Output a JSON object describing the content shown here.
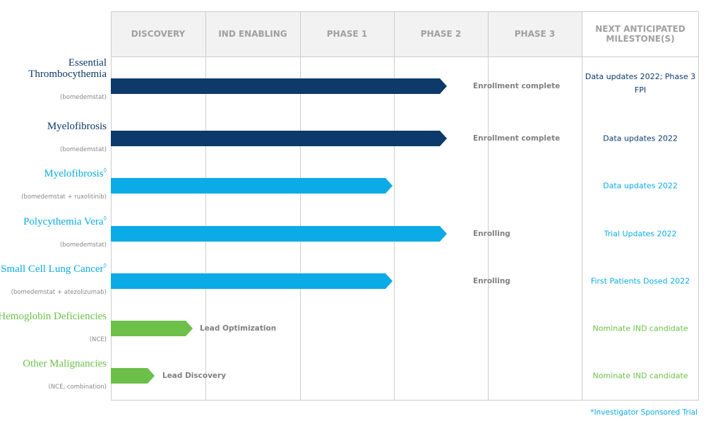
{
  "header": {
    "columns": [
      "DISCOVERY",
      "IND ENABLING",
      "PHASE 1",
      "PHASE 2",
      "PHASE 3",
      "NEXT ANTICIPATED MILESTONE(S)"
    ]
  },
  "rows": [
    {
      "name": "Essential Thrombocythemia",
      "drug": "(bomedemstat)",
      "color": "#0d3a6b",
      "status": "Enrollment complete",
      "milestone": "Data updates 2022; Phase 3 FPI"
    },
    {
      "name": "Myelofibrosis",
      "drug": "(bomedemstat)",
      "color": "#0d3a6b",
      "status": "Enrollment complete",
      "milestone": "Data updates 2022"
    },
    {
      "name": "Myelofibrosis",
      "marker": "◊",
      "drug": "(bomedemstat + ruxolitinib)",
      "color": "#0aabe6",
      "milestone": "Data updates 2022"
    },
    {
      "name": "Polycythemia Vera",
      "marker": "◊",
      "drug": "(bomedemstat)",
      "color": "#0aabe6",
      "status": "Enrolling",
      "milestone": "Trial Updates 2022"
    },
    {
      "name": "Small Cell Lung Cancer",
      "marker": "◊",
      "drug": "(bomedemstat + atezolizumab)",
      "color": "#0aabe6",
      "status": "Enrolling",
      "milestone": "First Patients Dosed 2022"
    },
    {
      "name": "Hemoglobin Deficiencies",
      "drug": "(NCE)",
      "color": "#6cc04a",
      "status": "Lead Optimization",
      "milestone": "Nominate IND candidate"
    },
    {
      "name": "Other Malignancies",
      "drug": "(NCE, combination)",
      "color": "#6cc04a",
      "status": "Lead Discovery",
      "milestone": "Nominate IND candidate"
    }
  ],
  "footnote": "*Investigator Sponsored Trial"
}
